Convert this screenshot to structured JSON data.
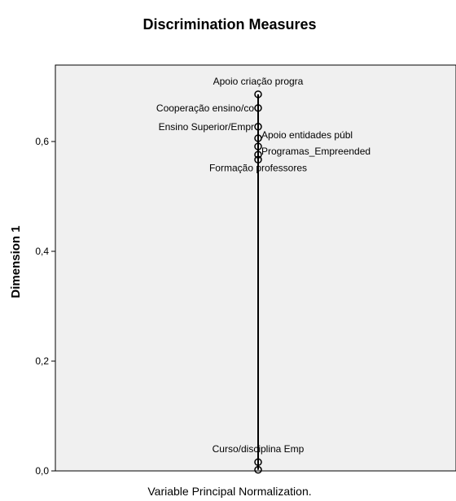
{
  "chart_data": {
    "type": "scatter",
    "title": "Discrimination Measures",
    "ylabel": "Dimension 1",
    "xlabel": "",
    "footnote": "Variable Principal Normalization.",
    "ylim": [
      0.0,
      0.69
    ],
    "yticks": [
      "0,0",
      "0,2",
      "0,4",
      "0,6"
    ],
    "ytick_values": [
      0.0,
      0.2,
      0.4,
      0.6
    ],
    "grid": false,
    "plot_background": "#f0f0f0",
    "points": [
      {
        "label": "Apoio criação progra",
        "y": 0.686
      },
      {
        "label": "Cooperação ensino/co",
        "y": 0.661
      },
      {
        "label": "Ensino Superior/Empr",
        "y": 0.627
      },
      {
        "label": "Apoio entidades públ",
        "y": 0.606
      },
      {
        "label": "",
        "y": 0.591
      },
      {
        "label": "Programas_Empreended",
        "y": 0.576
      },
      {
        "label": "Formação professores",
        "y": 0.567
      },
      {
        "label": "Curso/disciplina Emp",
        "y": 0.016
      },
      {
        "label": "",
        "y": 0.002
      }
    ]
  }
}
